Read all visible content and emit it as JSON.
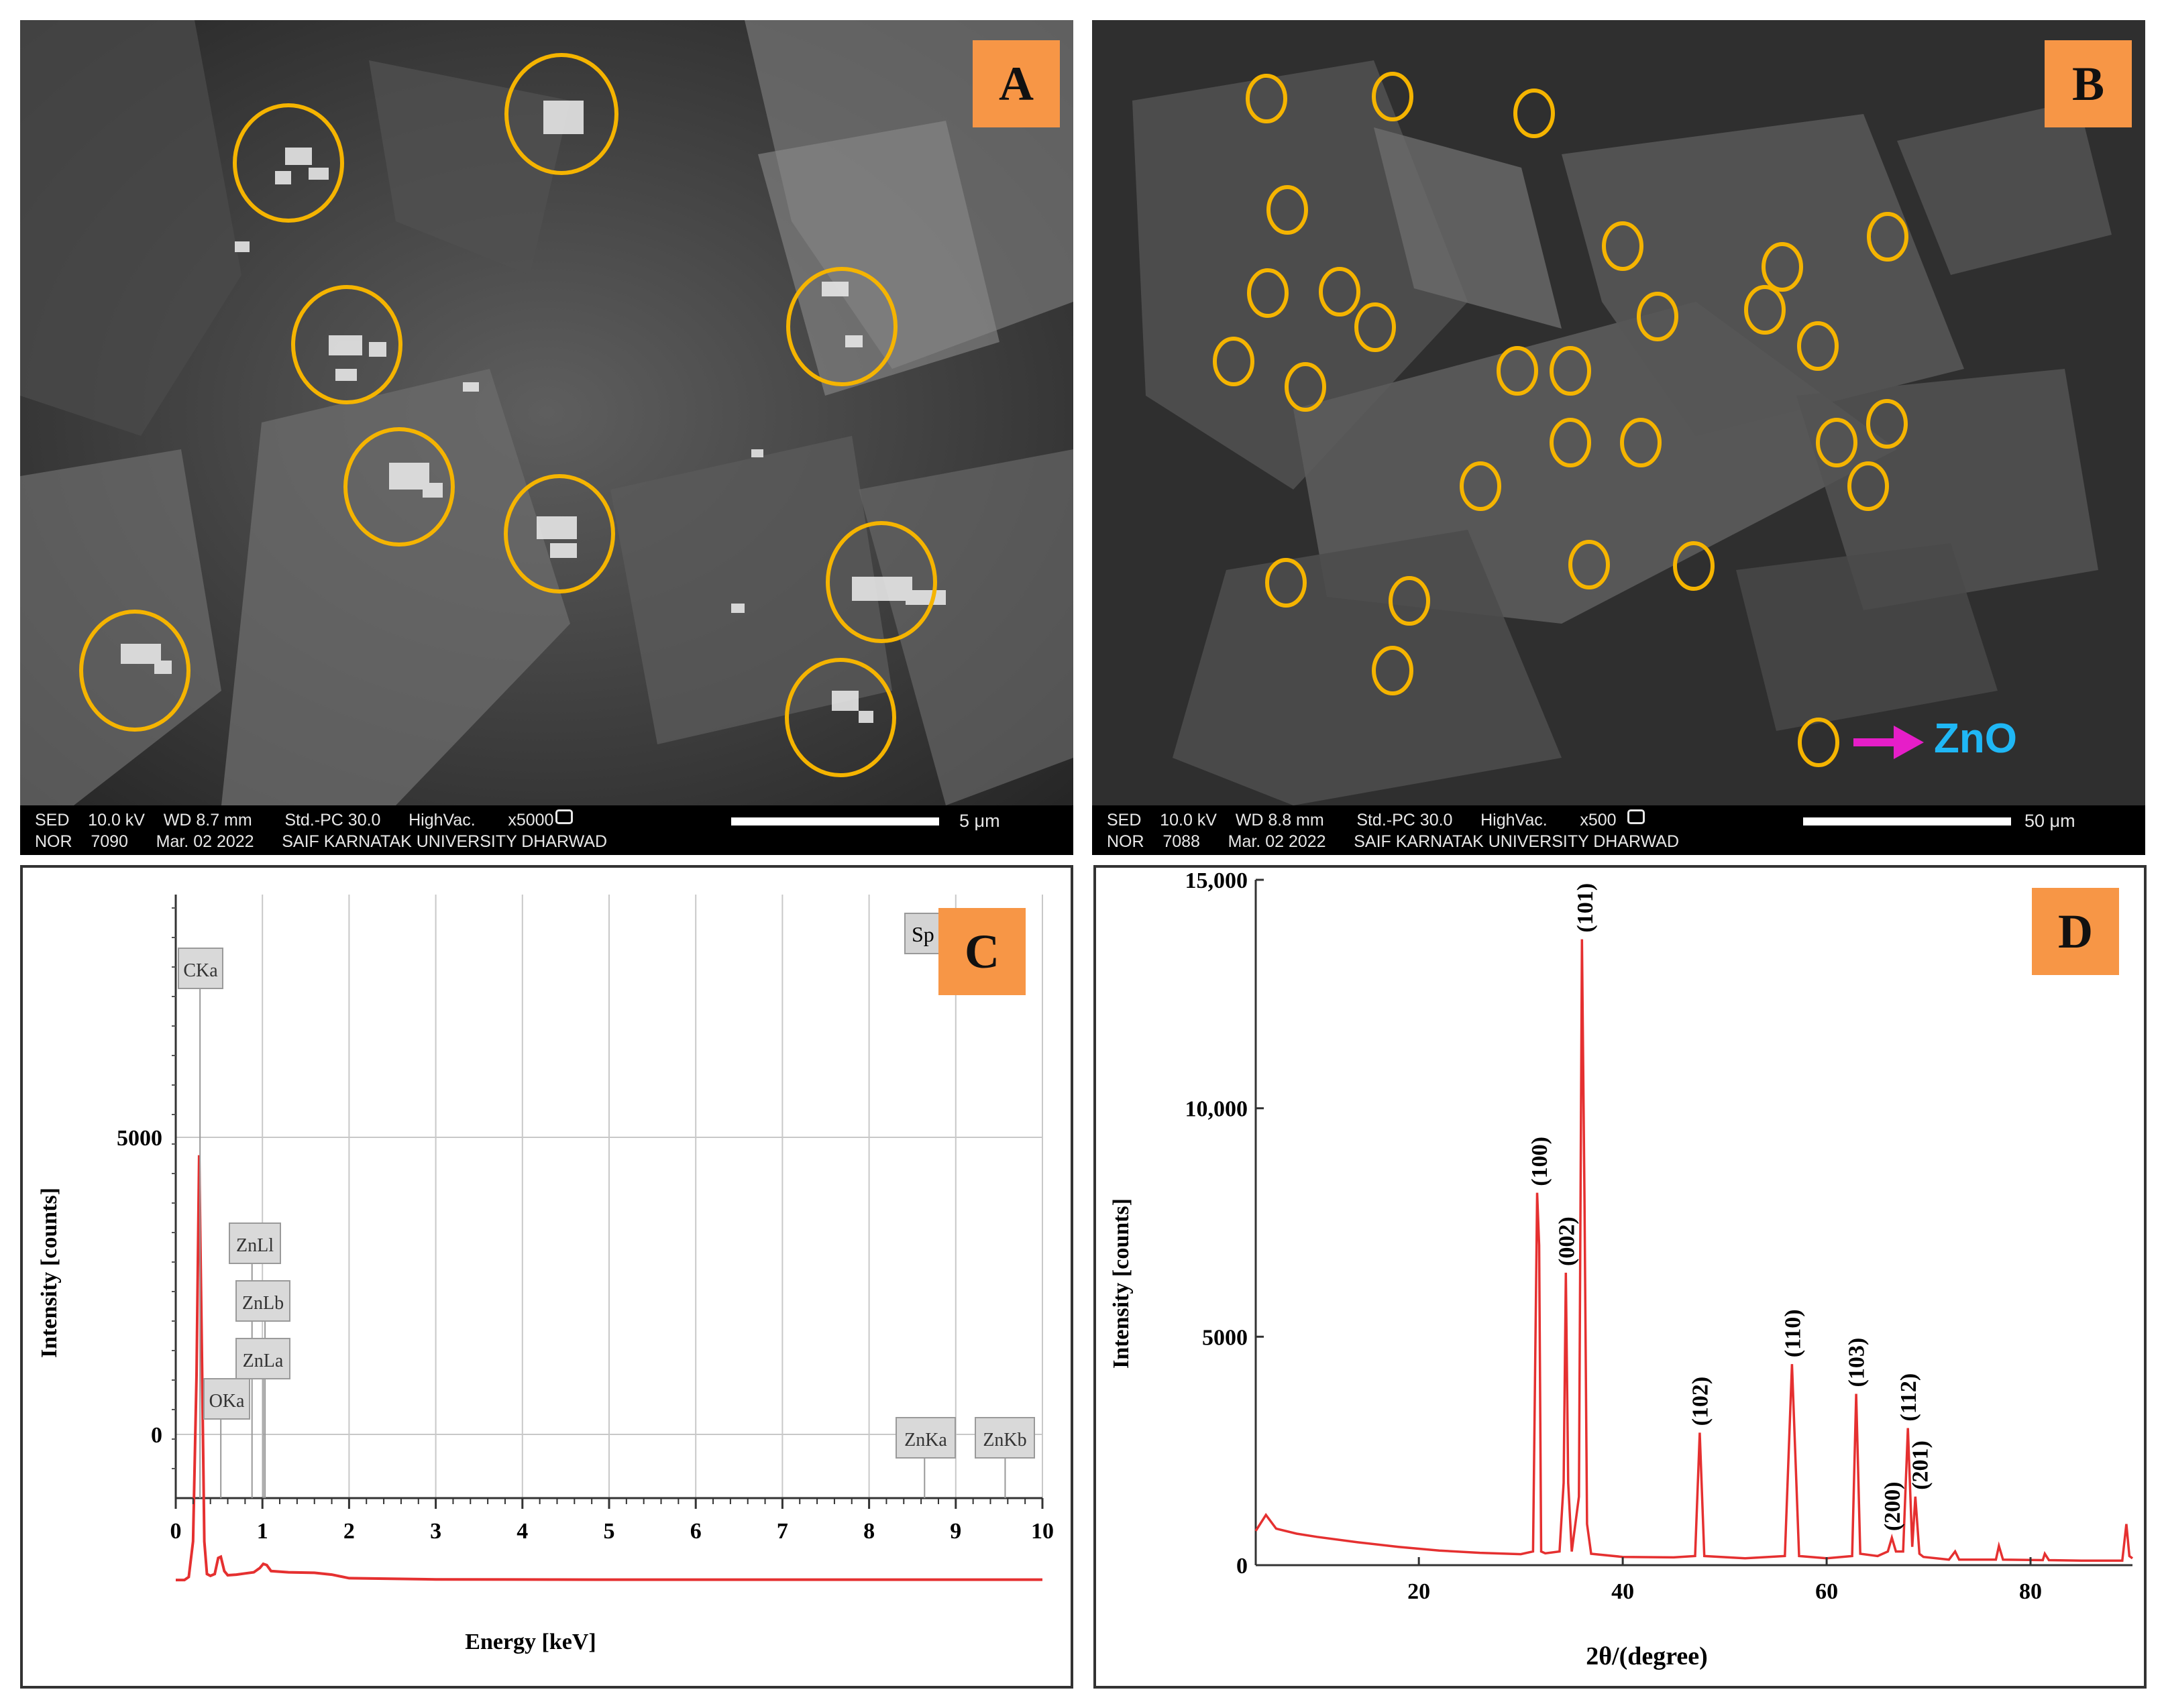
{
  "panels": {
    "a": {
      "letter": "A",
      "info_line1": "SED    10.0 kV    WD 8.7 mm       Std.-PC 30.0      HighVac.       x5000",
      "info_line2": "NOR    7090      Mar. 02 2022      SAIF KARNATAK UNIVERSITY DHARWAD",
      "scale": "5 μm"
    },
    "b": {
      "letter": "B",
      "info_line1": "SED    10.0 kV    WD 8.8 mm       Std.-PC 30.0      HighVac.       x500",
      "info_line2": "NOR    7088      Mar. 02 2022      SAIF KARNATAK UNIVERSITY DHARWAD",
      "scale": "50 μm",
      "annotation": "ZnO"
    },
    "c": {
      "letter": "C",
      "legend_stub": "Sp"
    },
    "d": {
      "letter": "D"
    }
  },
  "colors": {
    "letter_badge": "#f79646",
    "circle_marker": "#f5b400",
    "spectrum_line": "#e53030",
    "arrow": "#e61ec8",
    "zno_text": "#1fb7f5"
  },
  "chart_data": [
    {
      "type": "line",
      "panel": "C",
      "xlabel": "Energy [keV]",
      "ylabel": "Intensity [counts]",
      "xlim": [
        0,
        10
      ],
      "x_ticks": [
        "0",
        "1",
        "2",
        "3",
        "4",
        "5",
        "6",
        "7",
        "8",
        "9",
        "10"
      ],
      "y_ticks": [
        "0",
        "5000"
      ],
      "grid": true,
      "series": [
        {
          "x": [
            0,
            0.1,
            0.15,
            0.2,
            0.24,
            0.27,
            0.3,
            0.33,
            0.36,
            0.4,
            0.45,
            0.49,
            0.52,
            0.56,
            0.6,
            0.7,
            0.8,
            0.9,
            0.97,
            1.01,
            1.05,
            1.1,
            1.3,
            1.6,
            1.8,
            2.0,
            3,
            5,
            7,
            9,
            10
          ],
          "y": [
            -2450,
            -2450,
            -2400,
            -1800,
            1000,
            4700,
            1500,
            -1800,
            -2350,
            -2380,
            -2350,
            -2080,
            -2060,
            -2300,
            -2370,
            -2360,
            -2340,
            -2320,
            -2250,
            -2180,
            -2200,
            -2300,
            -2320,
            -2330,
            -2360,
            -2420,
            -2440,
            -2445,
            -2445,
            -2445,
            -2445
          ]
        }
      ],
      "peak_labels": [
        {
          "label": "CKa",
          "x": 0.28
        },
        {
          "label": "OKa",
          "x": 0.52
        },
        {
          "label": "ZnLl",
          "x": 0.88
        },
        {
          "label": "ZnLb",
          "x": 1.03
        },
        {
          "label": "ZnLa",
          "x": 1.01
        },
        {
          "label": "ZnKa",
          "x": 8.64
        },
        {
          "label": "ZnKb",
          "x": 9.57
        }
      ]
    },
    {
      "type": "line",
      "panel": "D",
      "xlabel": "2θ/(degree)",
      "ylabel": "Intensity [counts]",
      "xlim": [
        4,
        90
      ],
      "ylim": [
        0,
        15000
      ],
      "x_ticks": [
        "20",
        "40",
        "60",
        "80"
      ],
      "y_ticks": [
        "0",
        "5000",
        "10,000",
        "15,000"
      ],
      "series": [
        {
          "x": [
            4,
            5,
            6,
            8,
            10,
            14,
            18,
            22,
            26,
            30,
            31.2,
            31.6,
            31.8,
            32.0,
            32.4,
            33.8,
            34.2,
            34.42,
            34.65,
            35.0,
            35.7,
            36.0,
            36.25,
            36.5,
            36.9,
            40,
            45,
            47.1,
            47.55,
            48.0,
            52,
            55.9,
            56.6,
            57.3,
            60,
            62.5,
            62.9,
            63.3,
            65,
            66.0,
            66.4,
            66.8,
            67.5,
            67.97,
            68.4,
            68.7,
            69.1,
            69.5,
            72,
            72.6,
            73,
            76.6,
            76.9,
            77.3,
            81.2,
            81.4,
            81.8,
            85,
            89,
            89.4,
            89.7,
            90
          ],
          "y": [
            750,
            1100,
            800,
            690,
            620,
            500,
            400,
            320,
            270,
            240,
            300,
            8150,
            7000,
            300,
            260,
            300,
            1800,
            6400,
            1800,
            300,
            1500,
            13700,
            8000,
            900,
            250,
            180,
            170,
            200,
            2900,
            200,
            150,
            200,
            4400,
            200,
            150,
            200,
            3750,
            250,
            200,
            300,
            600,
            300,
            300,
            3000,
            400,
            1500,
            250,
            180,
            120,
            300,
            120,
            120,
            420,
            120,
            110,
            250,
            110,
            100,
            100,
            900,
            200,
            150
          ]
        }
      ],
      "peak_labels": [
        {
          "label": "(100)",
          "x": 31.77
        },
        {
          "label": "(002)",
          "x": 34.42
        },
        {
          "label": "(101)",
          "x": 36.25
        },
        {
          "label": "(102)",
          "x": 47.54
        },
        {
          "label": "(110)",
          "x": 56.6
        },
        {
          "label": "(103)",
          "x": 62.86
        },
        {
          "label": "(200)",
          "x": 66.38
        },
        {
          "label": "(112)",
          "x": 67.96
        },
        {
          "label": "(201)",
          "x": 69.1
        }
      ]
    }
  ]
}
